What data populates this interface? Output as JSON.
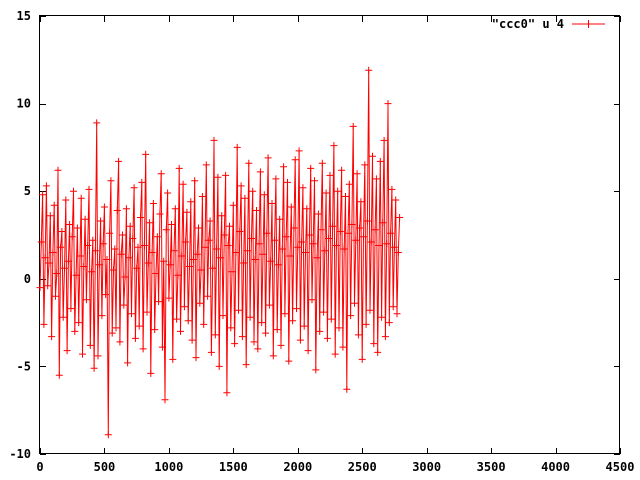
{
  "chart_data": {
    "type": "line",
    "title": "",
    "xlabel": "",
    "ylabel": "",
    "xlim": [
      0,
      4500
    ],
    "ylim": [
      -10,
      15
    ],
    "x_ticks": [
      0,
      500,
      1000,
      1500,
      2000,
      2500,
      3000,
      3500,
      4000,
      4500
    ],
    "y_ticks": [
      -10,
      -5,
      0,
      5,
      10,
      15
    ],
    "x_tick_labels": [
      "0",
      "500",
      "1000",
      "1500",
      "2000",
      "2500",
      "3000",
      "3500",
      "4000",
      "4500"
    ],
    "y_tick_labels": [
      "-10",
      "-5",
      "0",
      "5",
      "10",
      "15"
    ],
    "grid": false,
    "legend_position": "top-right",
    "series": [
      {
        "name": "\"ccc0\" u 4",
        "color": "#ff0000",
        "marker": "plus",
        "style": "linespoints",
        "x_start": 0,
        "x_step": 10,
        "y": [
          -0.5,
          2.1,
          4.8,
          -2.6,
          1.2,
          5.3,
          -0.4,
          0.9,
          3.6,
          -3.3,
          1.5,
          4.2,
          -1.0,
          0.3,
          6.2,
          -5.5,
          1.8,
          2.7,
          -2.2,
          0.6,
          4.5,
          -4.1,
          1.0,
          3.1,
          -1.7,
          2.4,
          5.0,
          -3.0,
          0.2,
          2.9,
          -2.5,
          1.3,
          4.6,
          -4.3,
          0.7,
          3.4,
          -1.2,
          1.9,
          5.1,
          -3.8,
          0.4,
          2.2,
          -5.1,
          1.6,
          8.9,
          -4.4,
          0.8,
          3.3,
          -2.1,
          2.0,
          4.1,
          -0.9,
          1.1,
          -8.9,
          2.6,
          5.6,
          -3.1,
          0.5,
          1.7,
          -2.8,
          3.9,
          6.7,
          -3.6,
          1.4,
          2.5,
          -1.5,
          0.1,
          4.0,
          -4.8,
          1.2,
          3.0,
          -2.0,
          2.3,
          5.2,
          -3.4,
          0.6,
          1.8,
          -2.7,
          3.5,
          5.5,
          -4.0,
          1.9,
          7.1,
          -1.9,
          0.9,
          3.2,
          -5.4,
          1.5,
          4.3,
          -2.9,
          0.3,
          2.4,
          -1.3,
          3.7,
          6.0,
          -3.9,
          1.0,
          -6.9,
          2.8,
          4.9,
          -1.1,
          0.8,
          3.1,
          -4.6,
          1.6,
          4.0,
          -2.3,
          0.2,
          6.3,
          -3.0,
          1.3,
          5.4,
          -1.6,
          2.1,
          3.8,
          -2.4,
          0.7,
          4.4,
          -3.5,
          1.1,
          5.6,
          -4.5,
          1.4,
          2.9,
          -1.4,
          0.5,
          4.7,
          -2.6,
          1.8,
          6.5,
          -1.0,
          2.2,
          3.3,
          -4.2,
          0.6,
          7.9,
          -3.2,
          1.7,
          5.8,
          -5.0,
          1.2,
          3.6,
          -2.1,
          2.5,
          5.9,
          -6.5,
          1.9,
          3.0,
          -2.8,
          0.4,
          4.2,
          -3.7,
          1.5,
          7.5,
          -1.8,
          2.7,
          5.3,
          -3.3,
          0.9,
          4.6,
          -4.9,
          1.6,
          6.6,
          -2.2,
          2.3,
          5.0,
          -3.6,
          1.1,
          3.9,
          -4.0,
          2.0,
          6.1,
          -2.5,
          1.4,
          4.8,
          -3.1,
          2.6,
          6.9,
          -1.5,
          1.0,
          4.3,
          -4.4,
          2.2,
          5.7,
          -2.9,
          0.8,
          3.4,
          -3.8,
          1.7,
          6.4,
          -2.0,
          2.4,
          5.5,
          -4.7,
          1.3,
          4.1,
          -2.4,
          2.9,
          6.8,
          -1.7,
          1.8,
          7.3,
          -3.5,
          2.1,
          5.2,
          -2.7,
          1.5,
          4.0,
          -4.1,
          2.5,
          6.3,
          -1.2,
          2.0,
          5.6,
          -5.2,
          1.2,
          3.7,
          -3.0,
          2.8,
          6.6,
          -1.9,
          1.6,
          4.9,
          -3.4,
          2.3,
          5.9,
          -2.3,
          3.0,
          7.6,
          -4.3,
          1.9,
          5.0,
          -2.8,
          2.7,
          6.2,
          -3.9,
          1.7,
          4.7,
          -6.3,
          2.6,
          5.4,
          -2.1,
          3.1,
          8.7,
          -1.4,
          2.2,
          6.0,
          -3.2,
          2.9,
          4.4,
          -4.6,
          2.4,
          6.5,
          -2.6,
          3.3,
          11.9,
          -1.8,
          2.1,
          7.0,
          -3.7,
          2.8,
          5.7,
          -4.2,
          1.9,
          6.7,
          -2.2,
          3.2,
          7.9,
          -3.3,
          2.0,
          10.0,
          -2.5,
          2.6,
          5.1,
          -1.6,
          1.8,
          4.5,
          -2.0,
          1.5,
          3.5
        ]
      }
    ]
  }
}
